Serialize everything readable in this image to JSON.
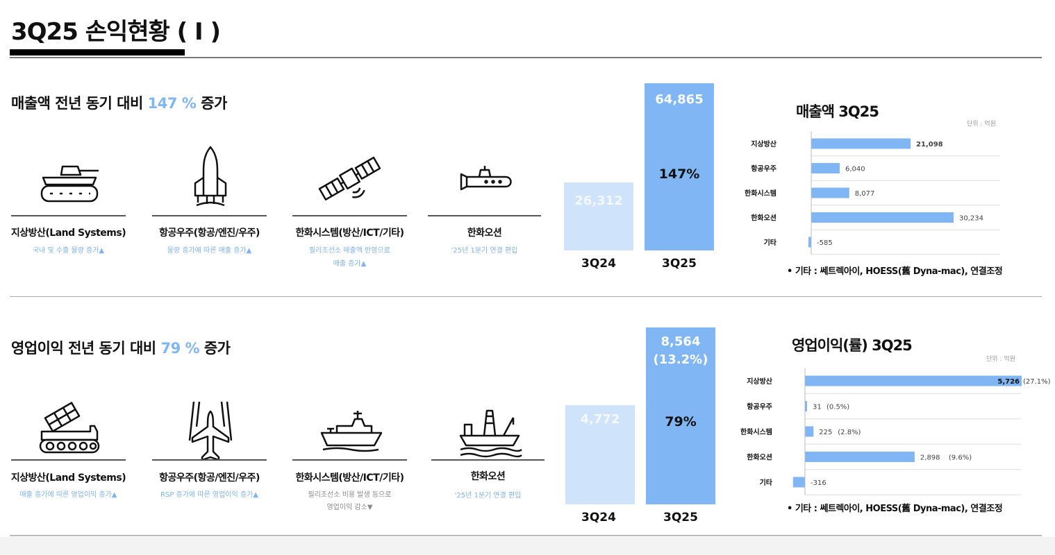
{
  "page": {
    "title": "3Q25 손익현황 ( I )"
  },
  "revenue": {
    "headline_pre": "매출액 전년 동기 대비 ",
    "headline_pct": "147 %",
    "headline_post": " 증가",
    "segments": [
      {
        "name": "지상방산(Land Systems)",
        "note": [
          "국내 및 수출 물량 증가▲"
        ],
        "icon": "tank-icon"
      },
      {
        "name": "항공우주(항공/엔진/우주)",
        "note": [
          "물량 증가에 따른 매출 증가▲"
        ],
        "icon": "rocket-icon"
      },
      {
        "name": "한화시스템(방산/ICT/기타)",
        "note": [
          "필리조선소 매출액 반영으로",
          "매출 증가▲"
        ],
        "icon": "satellite-icon"
      },
      {
        "name": "한화오션",
        "note": [
          "'25년 1분기 연결 편입"
        ],
        "icon": "submarine-icon"
      }
    ]
  },
  "operating": {
    "headline_pre": "영업이익 전년 동기 대비 ",
    "headline_pct": "79 %",
    "headline_post": " 증가",
    "segments": [
      {
        "name": "지상방산(Land Systems)",
        "note": [
          "매출 증가에 따른 영업이익 증가▲"
        ],
        "icon": "rocket-launcher-vehicle-icon"
      },
      {
        "name": "항공우주(항공/엔진/우주)",
        "note": [
          "RSP 증가에 따른 영업이익 증가▲"
        ],
        "icon": "jet-icon"
      },
      {
        "name": "한화시스템(방산/ICT/기타)",
        "note": [
          "필리조선소 비용 발생 등으로",
          "영업이익 감소▼"
        ],
        "icon": "warship-icon"
      },
      {
        "name": "한화오션",
        "note": [
          "'25년 1분기 연결 편입"
        ],
        "icon": "drilling-ship-icon"
      }
    ]
  },
  "chart_data": [
    {
      "type": "bar",
      "title": "",
      "categories": [
        "3Q24",
        "3Q25"
      ],
      "values": [
        26312,
        64865
      ],
      "value_labels": [
        "26,312",
        "64,865"
      ],
      "growth_label": "147%",
      "colors": [
        "#cfe3fb",
        "#80b6f4"
      ]
    },
    {
      "type": "bar",
      "orientation": "horizontal",
      "title": "매출액 3Q25",
      "unit": "단위 : 억원",
      "categories": [
        "지상방산",
        "항공우주",
        "한화시스템",
        "한화오션",
        "기타"
      ],
      "values": [
        21098,
        6040,
        8077,
        30234,
        -585
      ],
      "value_labels": [
        "21,098",
        "6,040",
        "8,077",
        "30,234",
        "-585"
      ],
      "color": "#80b6f4",
      "footnote": "• 기타 : 쎄트렉아이, HOESS(舊 Dyna-mac), 연결조정"
    },
    {
      "type": "bar",
      "title": "",
      "categories": [
        "3Q24",
        "3Q25"
      ],
      "values": [
        4772,
        8564
      ],
      "value_labels": [
        "4,772",
        "8,564"
      ],
      "value_sublabels": [
        "",
        "(13.2%)"
      ],
      "growth_label": "79%",
      "colors": [
        "#cfe3fb",
        "#80b6f4"
      ]
    },
    {
      "type": "bar",
      "orientation": "horizontal",
      "title": "영업이익(률) 3Q25",
      "unit": "단위 : 억원",
      "categories": [
        "지상방산",
        "항공우주",
        "한화시스템",
        "한화오션",
        "기타"
      ],
      "values": [
        5726,
        31,
        225,
        2898,
        -316
      ],
      "value_labels": [
        "5,726",
        "31",
        "225",
        "2,898",
        "-316"
      ],
      "margin_labels": [
        "(27.1%)",
        "(0.5%)",
        "(2.8%)",
        "(9.6%)",
        ""
      ],
      "color": "#80b6f4",
      "footnote": "• 기타 : 쎄트렉아이, HOESS(舊 Dyna-mac), 연결조정"
    }
  ]
}
